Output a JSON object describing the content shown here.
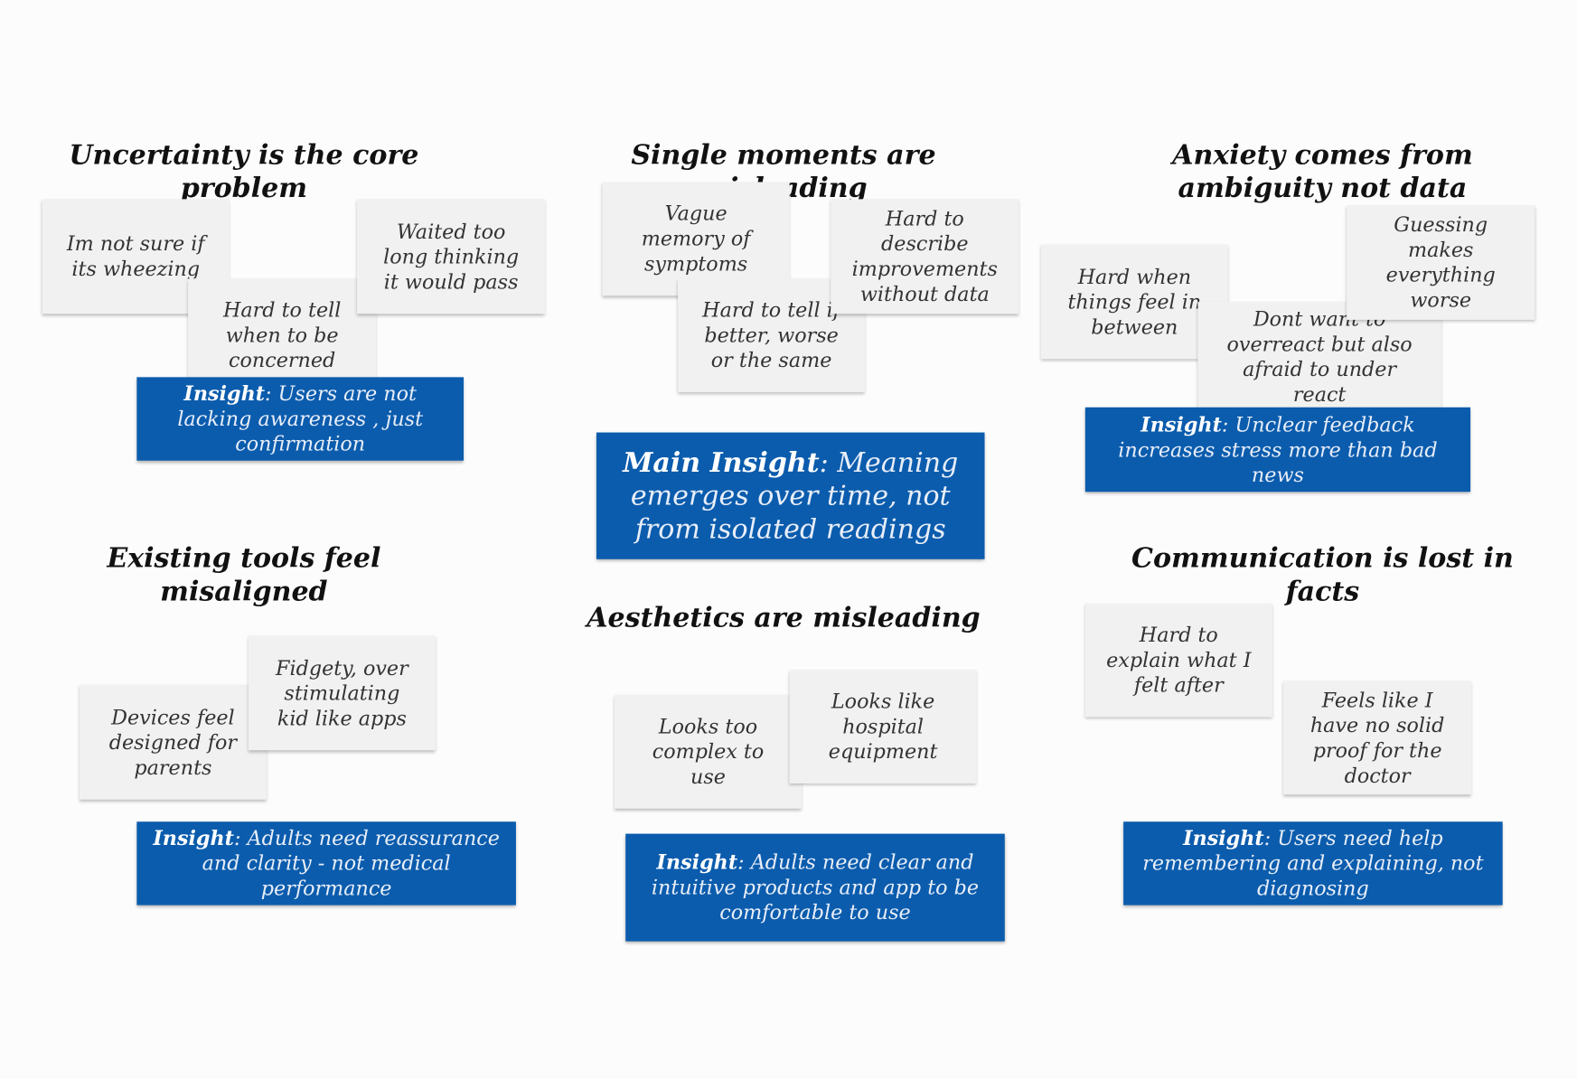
{
  "groups": [
    {
      "title": "Uncertainty is the core problem",
      "notes": [
        "Im not sure if its wheezing",
        "Hard to tell when to be concerned",
        "Waited too long thinking it would pass"
      ],
      "insight": {
        "label": "Insight",
        "text": ": Users are not lacking awareness , just confirmation"
      }
    },
    {
      "title": "Single moments are misleading",
      "notes": [
        "Vague memory of symptoms",
        "Hard to tell if better, worse or the same",
        "Hard to describe improvements without data"
      ],
      "insight": {
        "label": "Main Insight",
        "text": ": Meaning emerges over time, not from isolated readings"
      }
    },
    {
      "title": "Anxiety comes from ambiguity not data",
      "notes": [
        "Hard when things feel in between",
        "Dont want to overreact but also afraid to under react",
        "Guessing makes everything worse"
      ],
      "insight": {
        "label": "Insight",
        "text": ": Unclear feedback increases stress more than bad news"
      }
    },
    {
      "title": "Existing tools feel misaligned",
      "notes": [
        "Devices feel designed for parents",
        "Fidgety, over stimulating kid like apps"
      ],
      "insight": {
        "label": "Insight",
        "text": ": Adults need reassurance and clarity - not medical performance"
      }
    },
    {
      "title": "Aesthetics are misleading",
      "notes": [
        "Looks too complex to use",
        "Looks like hospital equipment"
      ],
      "insight": {
        "label": "Insight",
        "text": ": Adults need clear and intuitive products and app to be comfortable to use"
      }
    },
    {
      "title": "Communication is lost in facts",
      "notes": [
        "Hard to explain what I felt after",
        "Feels like I have no solid proof for the doctor"
      ],
      "insight": {
        "label": "Insight",
        "text": ": Users need help remembering and explaining, not diagnosing"
      }
    }
  ]
}
